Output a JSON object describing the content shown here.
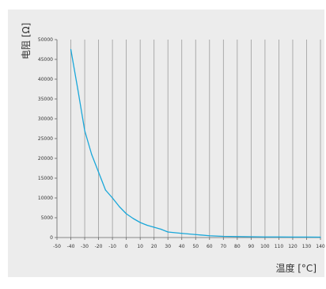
{
  "chart_data": {
    "type": "line",
    "title": "",
    "xlabel": "温度 [°C]",
    "ylabel": "电阻 [Ω]",
    "xlim": [
      -50,
      140
    ],
    "ylim": [
      0,
      50000
    ],
    "xticks": [
      -50,
      -40,
      -30,
      -20,
      -10,
      0,
      10,
      20,
      30,
      40,
      50,
      60,
      70,
      80,
      90,
      100,
      110,
      120,
      130,
      140
    ],
    "yticks": [
      0,
      5000,
      10000,
      15000,
      20000,
      25000,
      30000,
      35000,
      40000,
      45000,
      50000
    ],
    "grid": {
      "vertical": true,
      "horizontal": false
    },
    "series": [
      {
        "color": "#1aa7d9",
        "x": [
          -40,
          -35,
          -30,
          -25,
          -20,
          -15,
          -10,
          -5,
          0,
          5,
          10,
          15,
          20,
          25,
          30,
          40,
          50,
          60,
          70,
          80,
          90,
          100,
          110,
          120,
          130,
          140
        ],
        "y": [
          47500,
          37500,
          27000,
          21000,
          16500,
          12000,
          10000,
          7800,
          6000,
          4800,
          3800,
          3100,
          2600,
          2100,
          1400,
          1050,
          750,
          450,
          300,
          250,
          200,
          150,
          150,
          120,
          120,
          100
        ]
      }
    ]
  }
}
